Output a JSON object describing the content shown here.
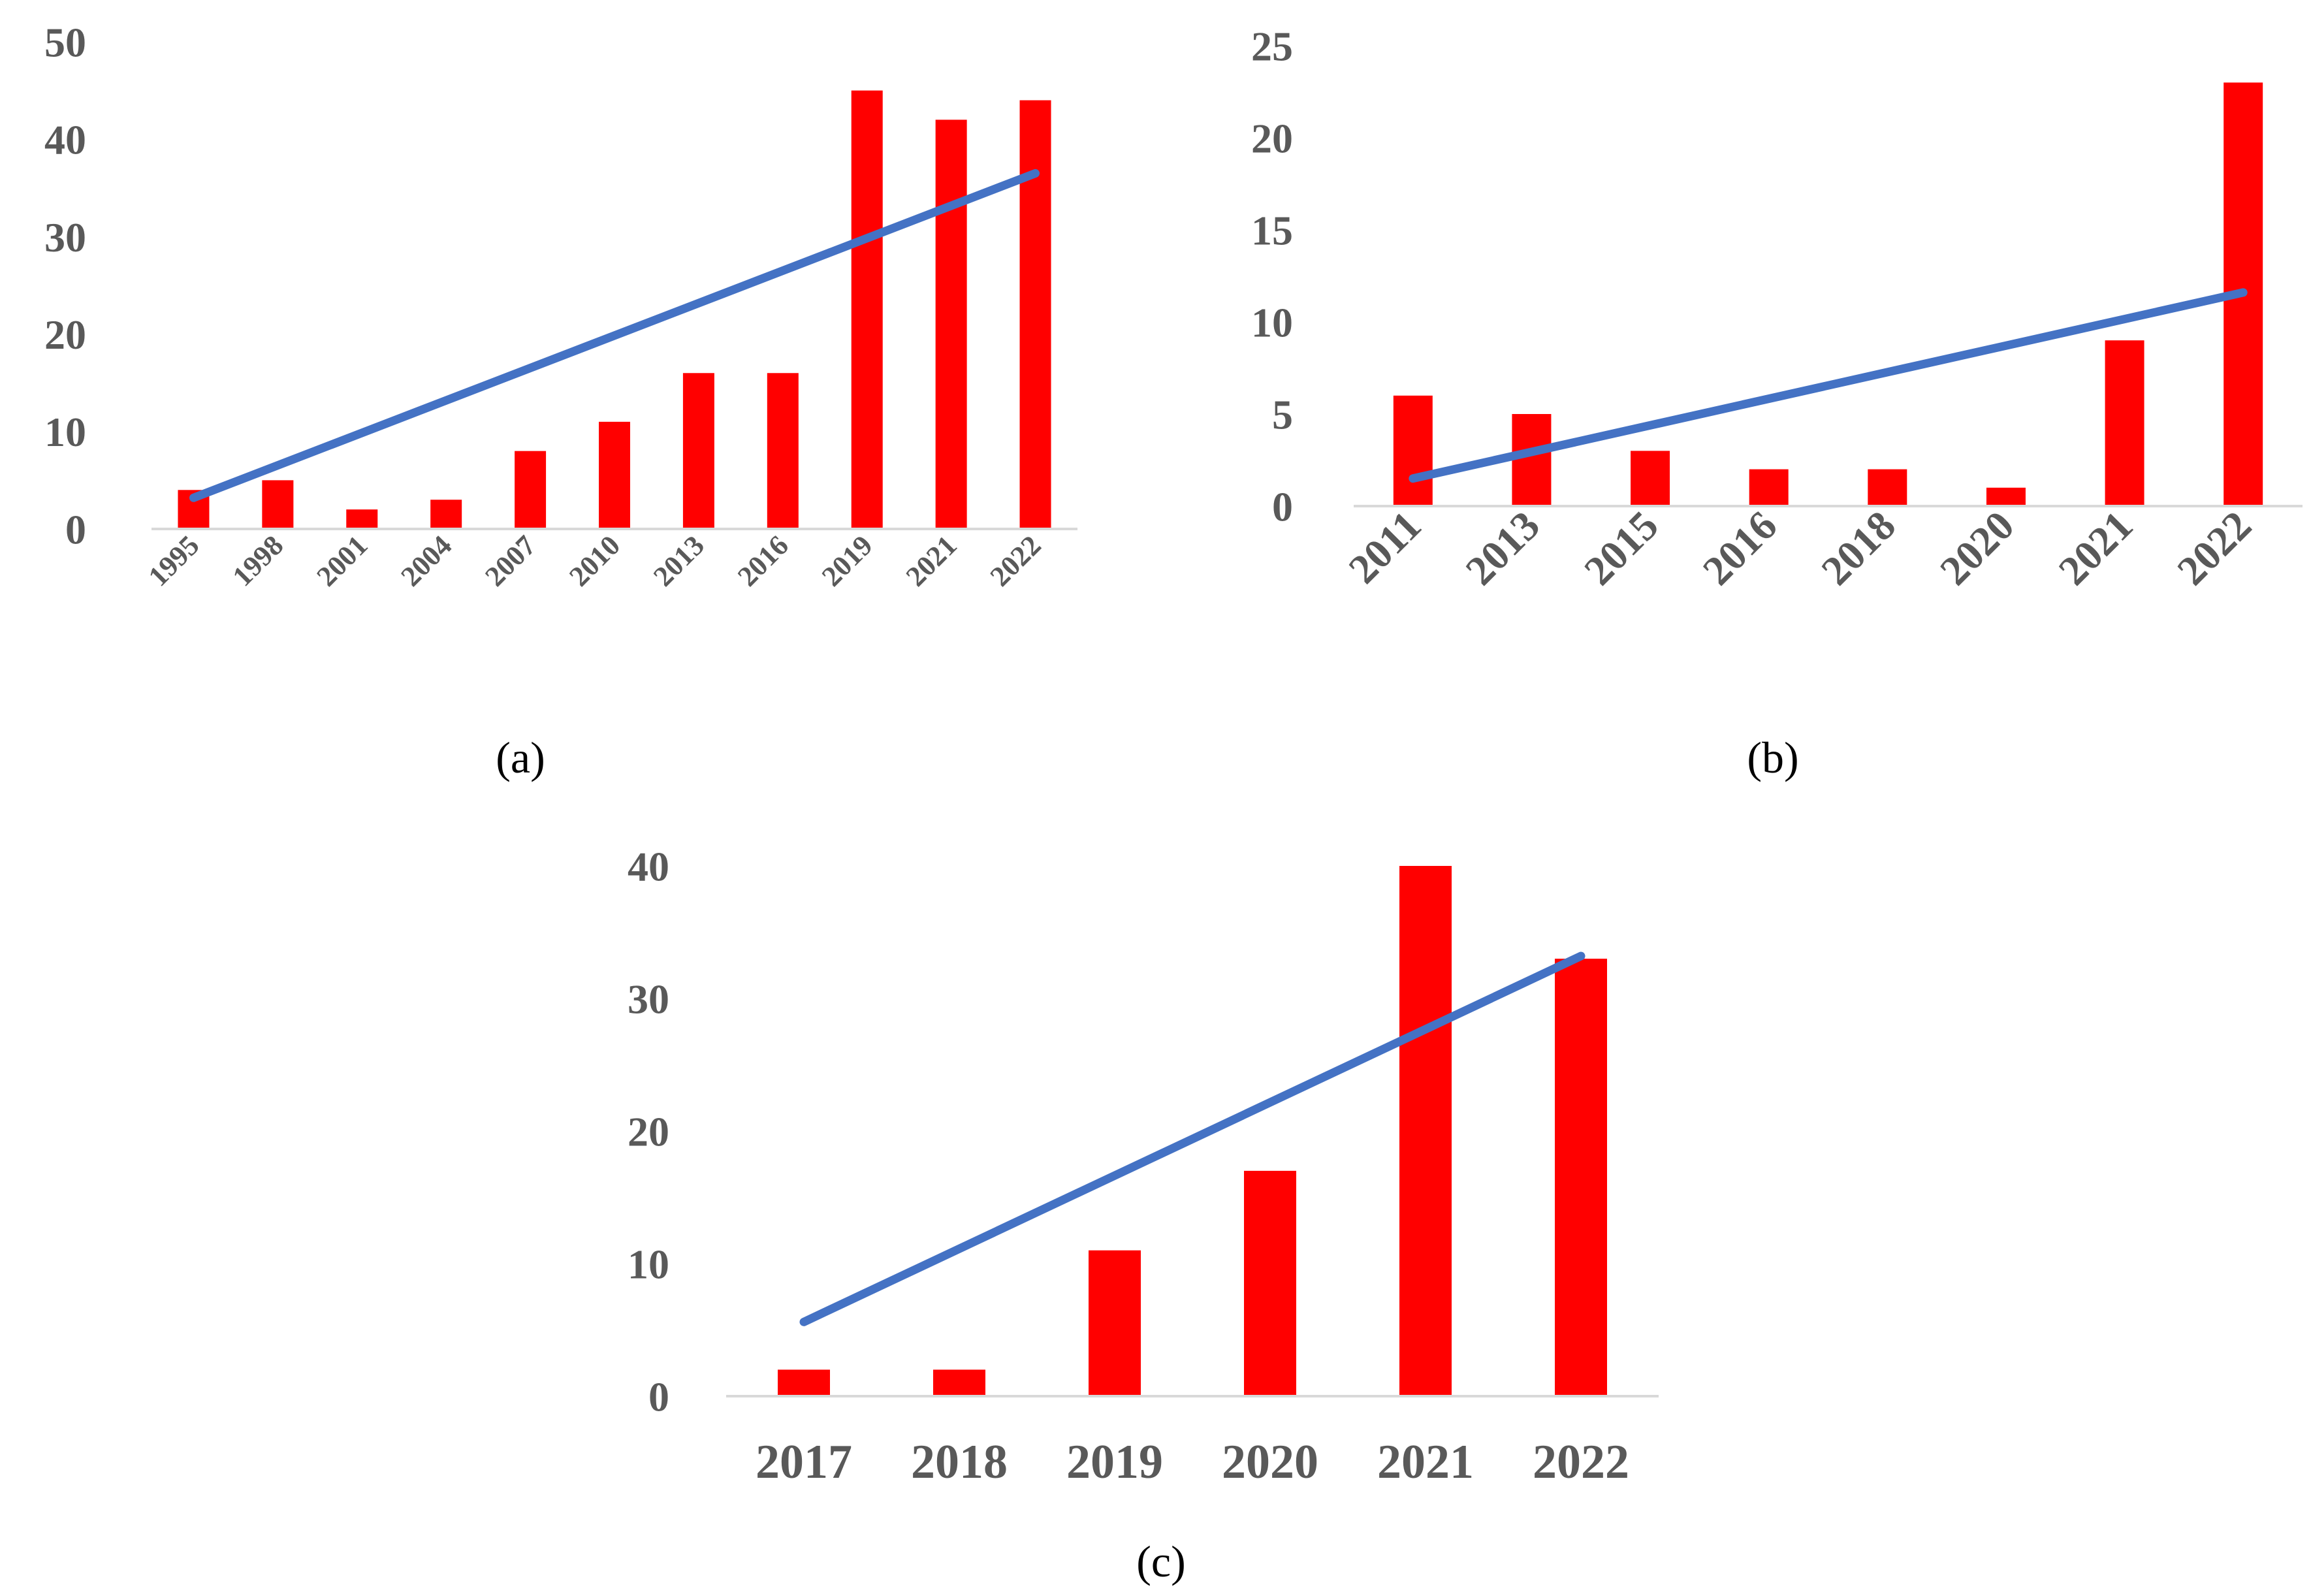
{
  "figure": {
    "bar_color": "#ff0000",
    "trend_color": "#4472c4",
    "axis_color": "#d9d9d9",
    "tick_color": "#595959"
  },
  "chart_data": [
    {
      "id": "a",
      "type": "bar",
      "panel_label": "(a)",
      "categories": [
        "1995",
        "1998",
        "2001",
        "2004",
        "2007",
        "2010",
        "2013",
        "2016",
        "2019",
        "2021",
        "2022"
      ],
      "values": [
        4,
        5,
        2,
        3,
        8,
        11,
        16,
        16,
        45,
        42,
        44
      ],
      "trendline": {
        "type": "linear",
        "start": 3.2,
        "end": 36.5
      },
      "yticks": [
        0,
        10,
        20,
        30,
        40,
        50
      ],
      "ylim": [
        0,
        50
      ],
      "xlabel_rotation": -45,
      "title": "",
      "xlabel": "",
      "ylabel": ""
    },
    {
      "id": "b",
      "type": "bar",
      "panel_label": "(b)",
      "categories": [
        "2011",
        "2013",
        "2015",
        "2016",
        "2018",
        "2020",
        "2021",
        "2022"
      ],
      "values": [
        6,
        5,
        3,
        2,
        2,
        1,
        9,
        23
      ],
      "trendline": {
        "type": "linear",
        "start": 1.5,
        "end": 11.6
      },
      "yticks": [
        0,
        5,
        10,
        15,
        20,
        25
      ],
      "ylim": [
        0,
        25
      ],
      "xlabel_rotation": -45,
      "title": "",
      "xlabel": "",
      "ylabel": ""
    },
    {
      "id": "c",
      "type": "bar",
      "panel_label": "(c)",
      "categories": [
        "2017",
        "2018",
        "2019",
        "2020",
        "2021",
        "2022"
      ],
      "values": [
        2,
        2,
        11,
        17,
        40,
        33
      ],
      "trendline": {
        "type": "linear",
        "start": 5.6,
        "end": 33.2
      },
      "yticks": [
        0,
        10,
        20,
        30,
        40
      ],
      "ylim": [
        0,
        40
      ],
      "xlabel_rotation": 0,
      "title": "",
      "xlabel": "",
      "ylabel": ""
    }
  ]
}
